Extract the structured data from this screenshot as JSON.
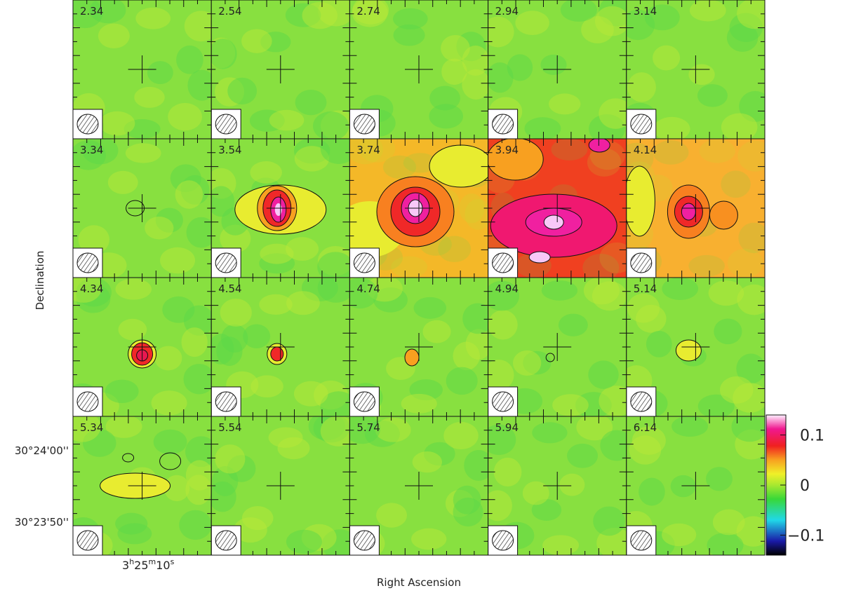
{
  "chart_data": {
    "type": "channel-map",
    "panel_labels": [
      "2.34",
      "2.54",
      "2.74",
      "2.94",
      "3.14",
      "3.34",
      "3.54",
      "3.74",
      "3.94",
      "4.14",
      "4.34",
      "4.54",
      "4.74",
      "4.94",
      "5.14",
      "5.34",
      "5.54",
      "5.74",
      "5.94",
      "6.14"
    ],
    "x_label": "Right Ascension",
    "y_label": "Declination",
    "x_tick_parts": [
      "3",
      "h",
      "25",
      "m",
      "10",
      "s"
    ],
    "y_tick_labels": [
      "30°24'00''",
      "30°23'50''"
    ],
    "colorbar": {
      "lim": [
        -0.14,
        0.14
      ],
      "ticks": [
        {
          "value": -0.1,
          "label": "−0.1"
        },
        0,
        0.1
      ]
    }
  }
}
